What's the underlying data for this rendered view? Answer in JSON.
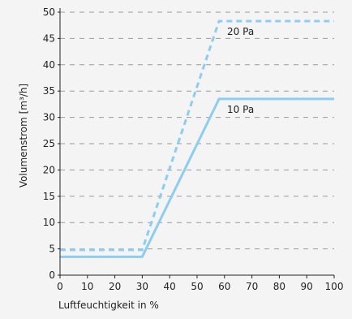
{
  "chart_data": {
    "type": "line",
    "x": [
      0,
      30,
      58,
      100
    ],
    "series": [
      {
        "name": "10 Pa",
        "label": "10 Pa",
        "x": [
          0,
          30,
          58,
          100
        ],
        "values": [
          3.5,
          3.5,
          33.5,
          33.5
        ],
        "style": "solid",
        "color": "#8ecdf0"
      },
      {
        "name": "20 Pa",
        "label": "20 Pa",
        "x": [
          0,
          30,
          58,
          100
        ],
        "values": [
          4.8,
          4.8,
          48.3,
          48.3
        ],
        "style": "dashed",
        "color": "#8ecdf0"
      }
    ],
    "xlabel": "Luftfeuchtigkeit in %",
    "ylabel": "Volumenstrom [m³/h]",
    "xlim": [
      0,
      100
    ],
    "ylim": [
      0,
      50
    ],
    "xticks": [
      0,
      10,
      20,
      30,
      40,
      50,
      60,
      70,
      80,
      90,
      100
    ],
    "yticks": [
      0,
      5,
      10,
      15,
      20,
      25,
      30,
      35,
      40,
      45,
      50
    ],
    "grid": "horizontal-dashed",
    "colors": {
      "background": "#f4f4f4",
      "axis": "#222222",
      "grid": "#9a9a9a",
      "line": "#8ecdf0"
    }
  }
}
